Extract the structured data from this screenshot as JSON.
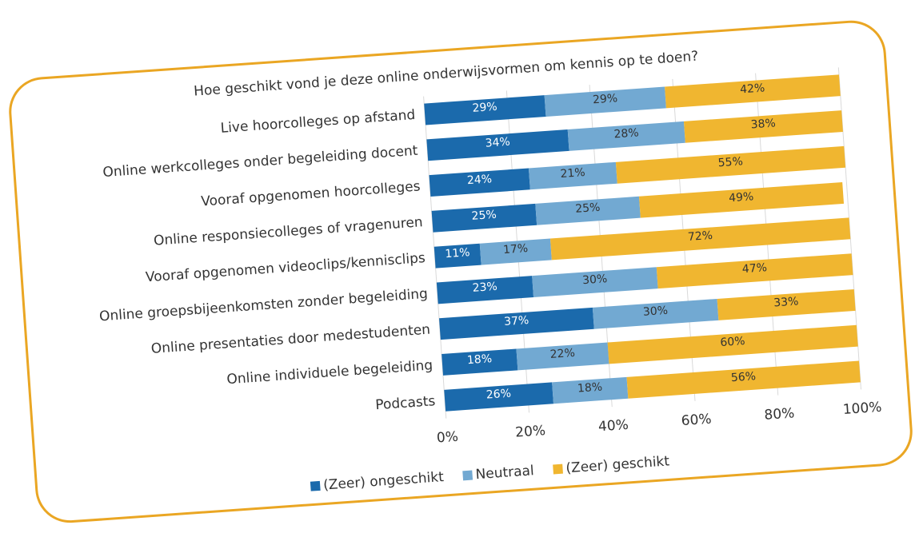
{
  "chart_data": {
    "type": "stacked_bar_horizontal",
    "title": "Hoe geschikt vond je deze online onderwijsvormen om kennis op te doen?",
    "categories": [
      "Live hoorcolleges op afstand",
      "Online werkcolleges onder begeleiding docent",
      "Vooraf opgenomen hoorcolleges",
      "Online responsiecolleges of vragenuren",
      "Vooraf opgenomen videoclips/kennisclips",
      "Online groepsbijeenkomsten zonder begeleiding",
      "Online presentaties door medestudenten",
      "Online individuele begeleiding",
      "Podcasts"
    ],
    "series": [
      {
        "name": "(Zeer) ongeschikt",
        "color": "#1b6aac",
        "values": [
          29,
          34,
          24,
          25,
          11,
          23,
          37,
          18,
          26
        ],
        "value_labels": [
          "29%",
          "34%",
          "24%",
          "25%",
          "11%",
          "23%",
          "37%",
          "18%",
          "26%"
        ]
      },
      {
        "name": "Neutraal",
        "color": "#72a9d2",
        "values": [
          29,
          28,
          21,
          25,
          17,
          30,
          30,
          22,
          18
        ],
        "value_labels": [
          "29%",
          "28%",
          "21%",
          "25%",
          "17%",
          "30%",
          "30%",
          "22%",
          "18%"
        ]
      },
      {
        "name": "(Zeer) geschikt",
        "color": "#f0b630",
        "values": [
          42,
          38,
          55,
          49,
          72,
          47,
          33,
          60,
          56
        ],
        "value_labels": [
          "42%",
          "38%",
          "55%",
          "49%",
          "72%",
          "47%",
          "33%",
          "60%",
          "56%"
        ]
      }
    ],
    "xlim": [
      0,
      100
    ],
    "xticks": [
      {
        "value": 0,
        "label": "0%"
      },
      {
        "value": 20,
        "label": "20%"
      },
      {
        "value": 40,
        "label": "40%"
      },
      {
        "value": 60,
        "label": "60%"
      },
      {
        "value": 80,
        "label": "80%"
      },
      {
        "value": 100,
        "label": "100%"
      }
    ],
    "grid": true,
    "legend": "bottom"
  }
}
